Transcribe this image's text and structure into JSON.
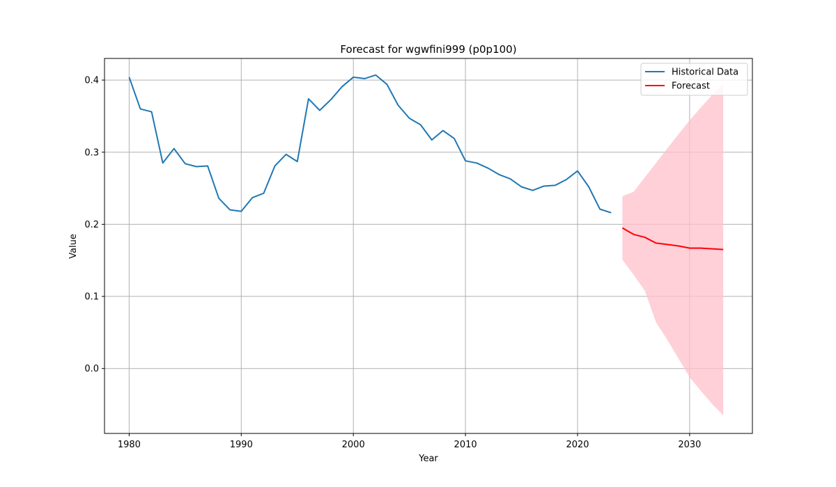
{
  "chart_data": {
    "type": "line",
    "title": "Forecast for wgwfini999 (p0p100)",
    "xlabel": "Year",
    "ylabel": "Value",
    "xlim": [
      1977.8,
      2035.6
    ],
    "ylim": [
      -0.09,
      0.43
    ],
    "xticks": [
      1980,
      1990,
      2000,
      2010,
      2020,
      2030
    ],
    "yticks": [
      0.0,
      0.1,
      0.2,
      0.3,
      0.4
    ],
    "ytick_labels": [
      "0.0",
      "0.1",
      "0.2",
      "0.3",
      "0.4"
    ],
    "grid": true,
    "legend_position": "top-right",
    "series": [
      {
        "name": "Historical Data",
        "color": "#1f77b4",
        "x": [
          1980,
          1981,
          1982,
          1983,
          1984,
          1985,
          1986,
          1987,
          1988,
          1989,
          1990,
          1991,
          1992,
          1993,
          1994,
          1995,
          1996,
          1997,
          1998,
          1999,
          2000,
          2001,
          2002,
          2003,
          2004,
          2005,
          2006,
          2007,
          2008,
          2009,
          2010,
          2011,
          2012,
          2013,
          2014,
          2015,
          2016,
          2017,
          2018,
          2019,
          2020,
          2021,
          2022,
          2023
        ],
        "y": [
          0.404,
          0.36,
          0.356,
          0.285,
          0.305,
          0.284,
          0.28,
          0.281,
          0.236,
          0.22,
          0.218,
          0.237,
          0.243,
          0.281,
          0.297,
          0.287,
          0.374,
          0.358,
          0.373,
          0.391,
          0.404,
          0.402,
          0.407,
          0.394,
          0.365,
          0.347,
          0.338,
          0.317,
          0.33,
          0.319,
          0.288,
          0.285,
          0.278,
          0.269,
          0.263,
          0.252,
          0.247,
          0.253,
          0.254,
          0.262,
          0.274,
          0.252,
          0.221,
          0.216
        ]
      },
      {
        "name": "Forecast",
        "color": "#ff0000",
        "x": [
          2024,
          2025,
          2026,
          2027,
          2028,
          2029,
          2030,
          2031,
          2032,
          2033
        ],
        "y": [
          0.195,
          0.186,
          0.182,
          0.174,
          0.172,
          0.17,
          0.167,
          0.167,
          0.166,
          0.165
        ],
        "lower": [
          0.151,
          0.13,
          0.108,
          0.064,
          0.04,
          0.014,
          -0.012,
          -0.031,
          -0.049,
          -0.065
        ],
        "upper": [
          0.239,
          0.245,
          0.265,
          0.285,
          0.305,
          0.325,
          0.344,
          0.362,
          0.379,
          0.395
        ],
        "band_color": "#ffc0cb"
      }
    ]
  }
}
